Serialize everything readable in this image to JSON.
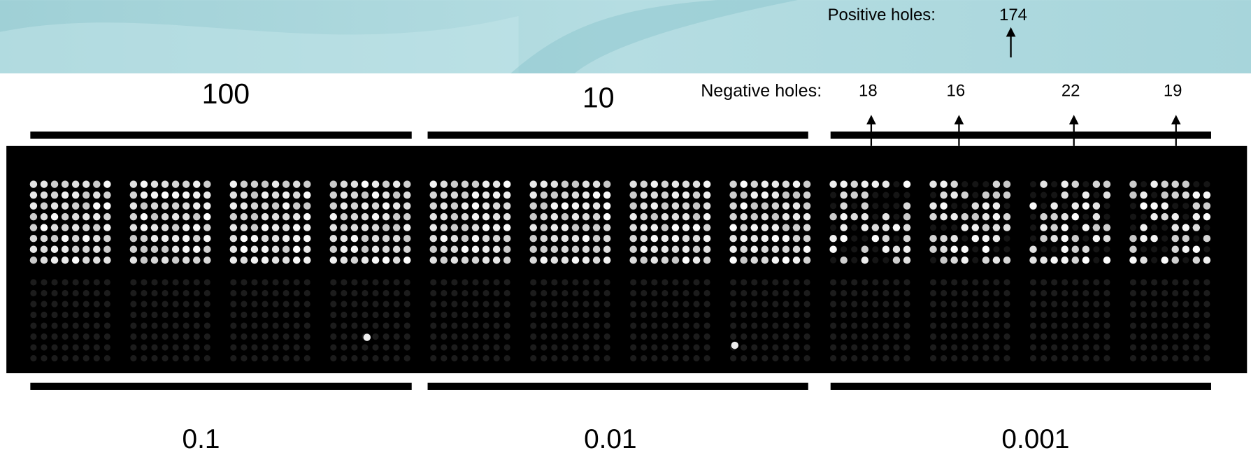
{
  "top_labels": {
    "left": "100",
    "middle": "10"
  },
  "positive": {
    "label": "Positive holes:",
    "count": "174"
  },
  "negative": {
    "label": "Negative holes:",
    "counts": [
      "18",
      "16",
      "22",
      "19"
    ]
  },
  "bottom_labels": [
    "0.1",
    "0.01",
    "0.001"
  ]
}
